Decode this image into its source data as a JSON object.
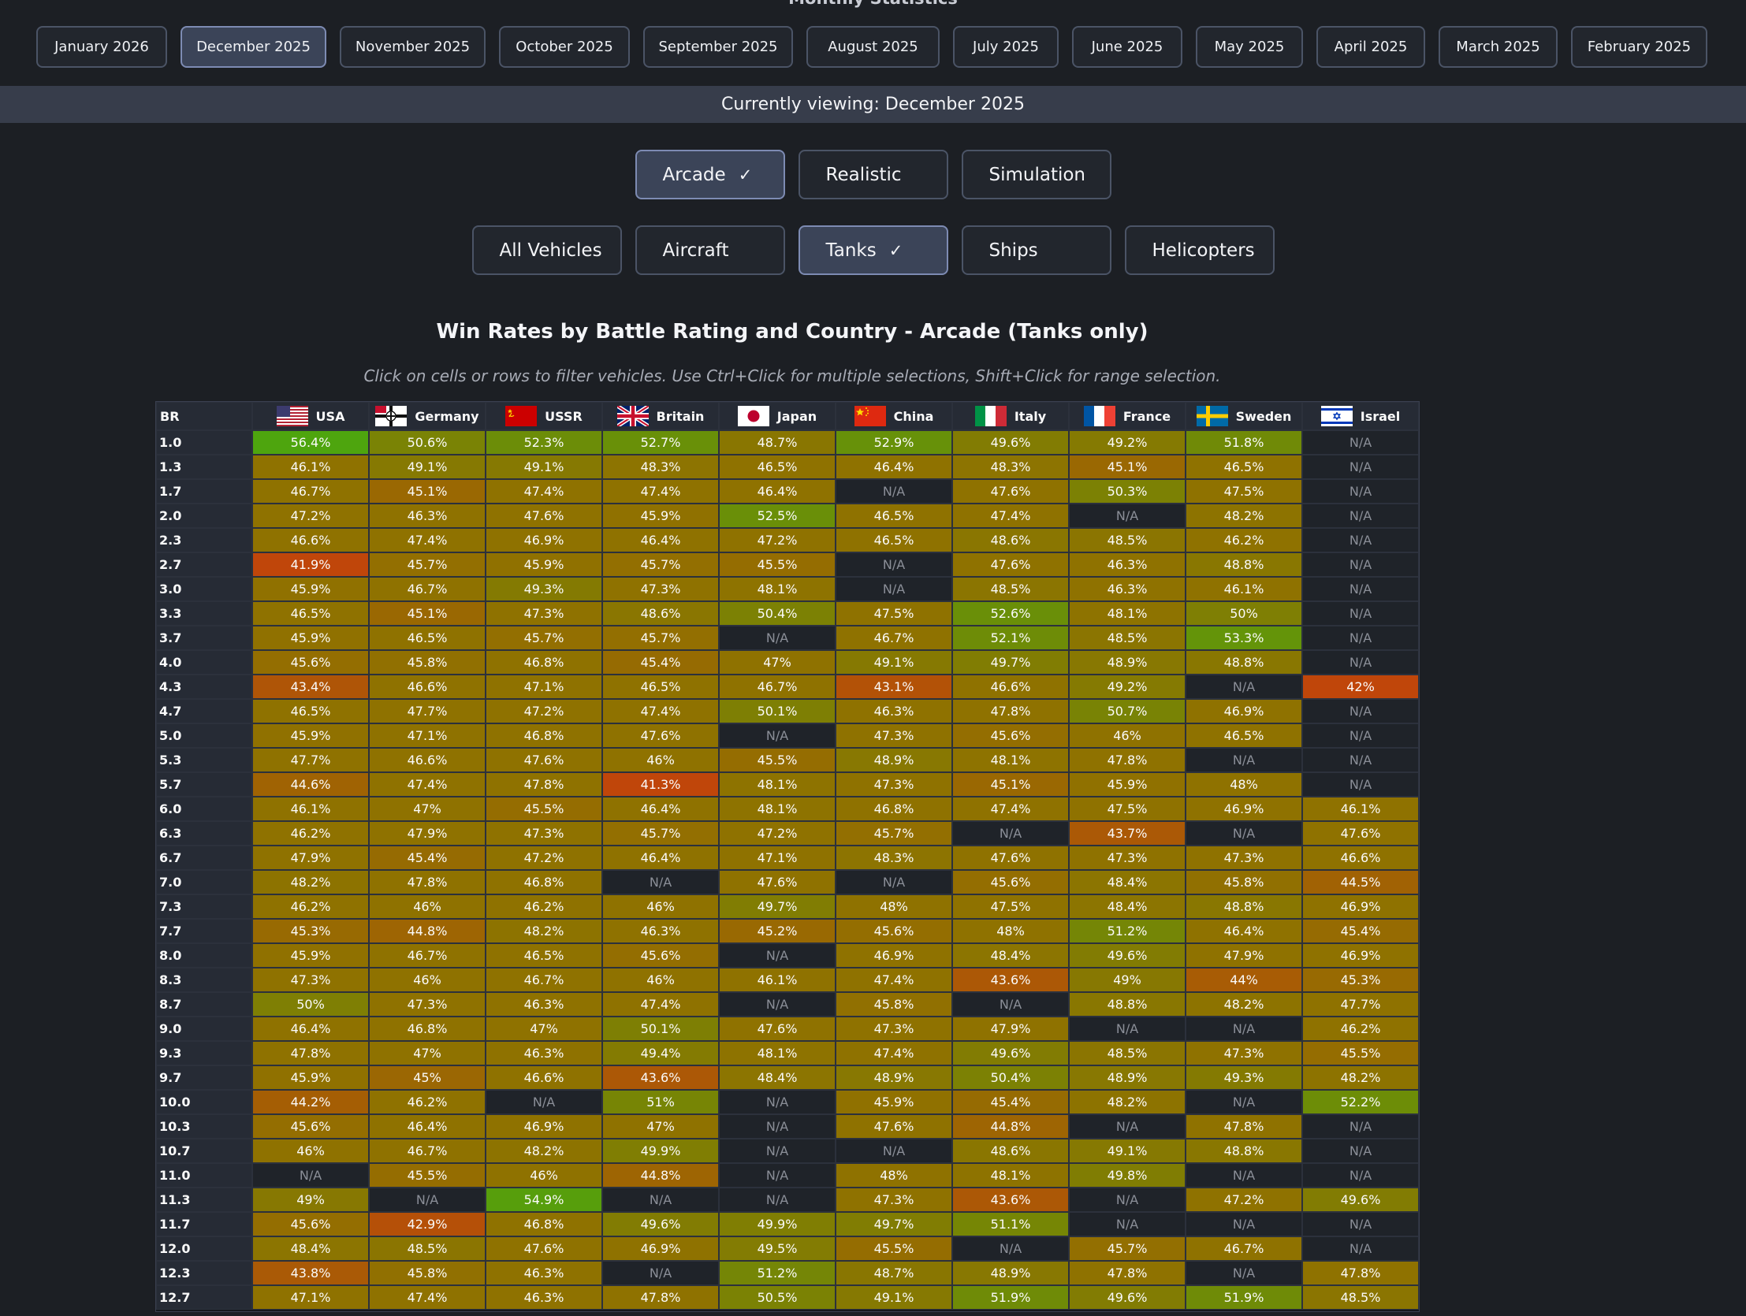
{
  "page_title": "Monthly Statistics",
  "months": [
    {
      "label": "January 2026",
      "width": 166,
      "active": false
    },
    {
      "label": "December 2025",
      "width": 185,
      "active": true
    },
    {
      "label": "November 2025",
      "width": 185,
      "active": false
    },
    {
      "label": "October 2025",
      "width": 166,
      "active": false
    },
    {
      "label": "September 2025",
      "width": 190,
      "active": false
    },
    {
      "label": "August 2025",
      "width": 169,
      "active": false
    },
    {
      "label": "July 2025",
      "width": 134,
      "active": false
    },
    {
      "label": "June 2025",
      "width": 140,
      "active": false
    },
    {
      "label": "May 2025",
      "width": 136,
      "active": false
    },
    {
      "label": "April 2025",
      "width": 138,
      "active": false
    },
    {
      "label": "March 2025",
      "width": 151,
      "active": false
    },
    {
      "label": "February 2025",
      "width": 173,
      "active": false
    }
  ],
  "viewing_text": "Currently viewing: December 2025",
  "modes": [
    {
      "label": "Arcade",
      "active": true
    },
    {
      "label": "Realistic",
      "active": false
    },
    {
      "label": "Simulation",
      "active": false
    }
  ],
  "vehicle_types": [
    {
      "label": "All Vehicles",
      "active": false
    },
    {
      "label": "Aircraft",
      "active": false
    },
    {
      "label": "Tanks",
      "active": true
    },
    {
      "label": "Ships",
      "active": false
    },
    {
      "label": "Helicopters",
      "active": false
    }
  ],
  "check_glyph": "✓",
  "chart_title": "Win Rates by Battle Rating and Country - Arcade (Tanks only)",
  "chart_hint": "Click on cells or rows to filter vehicles. Use Ctrl+Click for multiple selections, Shift+Click for range selection.",
  "br_header": "BR",
  "na_text": "N/A",
  "countries": [
    {
      "name": "USA",
      "flag": "usa-flag-icon"
    },
    {
      "name": "Germany",
      "flag": "germany-flag-icon"
    },
    {
      "name": "USSR",
      "flag": "ussr-flag-icon"
    },
    {
      "name": "Britain",
      "flag": "britain-flag-icon"
    },
    {
      "name": "Japan",
      "flag": "japan-flag-icon"
    },
    {
      "name": "China",
      "flag": "china-flag-icon"
    },
    {
      "name": "Italy",
      "flag": "italy-flag-icon"
    },
    {
      "name": "France",
      "flag": "france-flag-icon"
    },
    {
      "name": "Sweden",
      "flag": "sweden-flag-icon"
    },
    {
      "name": "Israel",
      "flag": "israel-flag-icon"
    }
  ],
  "colors": {
    "low": "#c0460a",
    "mid": "#8f7200",
    "high": "#4ea50e",
    "na": "#1f2329"
  },
  "chart_data": {
    "type": "heatmap",
    "title": "Win Rates by Battle Rating and Country - Arcade (Tanks only)",
    "x_categories": [
      "USA",
      "Germany",
      "USSR",
      "Britain",
      "Japan",
      "China",
      "Italy",
      "France",
      "Sweden",
      "Israel"
    ],
    "y_label": "BR",
    "unit": "%",
    "rows": [
      {
        "br": "1.0",
        "values": [
          "56.4%",
          "50.6%",
          "52.3%",
          "52.7%",
          "48.7%",
          "52.9%",
          "49.6%",
          "49.2%",
          "51.8%",
          "N/A"
        ]
      },
      {
        "br": "1.3",
        "values": [
          "46.1%",
          "49.1%",
          "49.1%",
          "48.3%",
          "46.5%",
          "46.4%",
          "48.3%",
          "45.1%",
          "46.5%",
          "N/A"
        ]
      },
      {
        "br": "1.7",
        "values": [
          "46.7%",
          "45.1%",
          "47.4%",
          "47.4%",
          "46.4%",
          "N/A",
          "47.6%",
          "50.3%",
          "47.5%",
          "N/A"
        ]
      },
      {
        "br": "2.0",
        "values": [
          "47.2%",
          "46.3%",
          "47.6%",
          "45.9%",
          "52.5%",
          "46.5%",
          "47.4%",
          "N/A",
          "48.2%",
          "N/A"
        ]
      },
      {
        "br": "2.3",
        "values": [
          "46.6%",
          "47.4%",
          "46.9%",
          "46.4%",
          "47.2%",
          "46.5%",
          "48.6%",
          "48.5%",
          "46.2%",
          "N/A"
        ]
      },
      {
        "br": "2.7",
        "values": [
          "41.9%",
          "45.7%",
          "45.9%",
          "45.7%",
          "45.5%",
          "N/A",
          "47.6%",
          "46.3%",
          "48.8%",
          "N/A"
        ]
      },
      {
        "br": "3.0",
        "values": [
          "45.9%",
          "46.7%",
          "49.3%",
          "47.3%",
          "48.1%",
          "N/A",
          "48.5%",
          "46.3%",
          "46.1%",
          "N/A"
        ]
      },
      {
        "br": "3.3",
        "values": [
          "46.5%",
          "45.1%",
          "47.3%",
          "48.6%",
          "50.4%",
          "47.5%",
          "52.6%",
          "48.1%",
          "50%",
          "N/A"
        ]
      },
      {
        "br": "3.7",
        "values": [
          "45.9%",
          "46.5%",
          "45.7%",
          "45.7%",
          "N/A",
          "46.7%",
          "52.1%",
          "48.5%",
          "53.3%",
          "N/A"
        ]
      },
      {
        "br": "4.0",
        "values": [
          "45.6%",
          "45.8%",
          "46.8%",
          "45.4%",
          "47%",
          "49.1%",
          "49.7%",
          "48.9%",
          "48.8%",
          "N/A"
        ]
      },
      {
        "br": "4.3",
        "values": [
          "43.4%",
          "46.6%",
          "47.1%",
          "46.5%",
          "46.7%",
          "43.1%",
          "46.6%",
          "49.2%",
          "N/A",
          "42%"
        ]
      },
      {
        "br": "4.7",
        "values": [
          "46.5%",
          "47.7%",
          "47.2%",
          "47.4%",
          "50.1%",
          "46.3%",
          "47.8%",
          "50.7%",
          "46.9%",
          "N/A"
        ]
      },
      {
        "br": "5.0",
        "values": [
          "45.9%",
          "47.1%",
          "46.8%",
          "47.6%",
          "N/A",
          "47.3%",
          "45.6%",
          "46%",
          "46.5%",
          "N/A"
        ]
      },
      {
        "br": "5.3",
        "values": [
          "47.7%",
          "46.6%",
          "47.6%",
          "46%",
          "45.5%",
          "48.9%",
          "48.1%",
          "47.8%",
          "N/A",
          "N/A"
        ]
      },
      {
        "br": "5.7",
        "values": [
          "44.6%",
          "47.4%",
          "47.8%",
          "41.3%",
          "48.1%",
          "47.3%",
          "45.1%",
          "45.9%",
          "48%",
          "N/A"
        ]
      },
      {
        "br": "6.0",
        "values": [
          "46.1%",
          "47%",
          "45.5%",
          "46.4%",
          "48.1%",
          "46.8%",
          "47.4%",
          "47.5%",
          "46.9%",
          "46.1%"
        ]
      },
      {
        "br": "6.3",
        "values": [
          "46.2%",
          "47.9%",
          "47.3%",
          "45.7%",
          "47.2%",
          "45.7%",
          "N/A",
          "43.7%",
          "N/A",
          "47.6%"
        ]
      },
      {
        "br": "6.7",
        "values": [
          "47.9%",
          "45.4%",
          "47.2%",
          "46.4%",
          "47.1%",
          "48.3%",
          "47.6%",
          "47.3%",
          "47.3%",
          "46.6%"
        ]
      },
      {
        "br": "7.0",
        "values": [
          "48.2%",
          "47.8%",
          "46.8%",
          "N/A",
          "47.6%",
          "N/A",
          "45.6%",
          "48.4%",
          "45.8%",
          "44.5%"
        ]
      },
      {
        "br": "7.3",
        "values": [
          "46.2%",
          "46%",
          "46.2%",
          "46%",
          "49.7%",
          "48%",
          "47.5%",
          "48.4%",
          "48.8%",
          "46.9%"
        ]
      },
      {
        "br": "7.7",
        "values": [
          "45.3%",
          "44.8%",
          "48.2%",
          "46.3%",
          "45.2%",
          "45.6%",
          "48%",
          "51.2%",
          "46.4%",
          "45.4%"
        ]
      },
      {
        "br": "8.0",
        "values": [
          "45.9%",
          "46.7%",
          "46.5%",
          "45.6%",
          "N/A",
          "46.9%",
          "48.4%",
          "49.6%",
          "47.9%",
          "46.9%"
        ]
      },
      {
        "br": "8.3",
        "values": [
          "47.3%",
          "46%",
          "46.7%",
          "46%",
          "46.1%",
          "47.4%",
          "43.6%",
          "49%",
          "44%",
          "45.3%"
        ]
      },
      {
        "br": "8.7",
        "values": [
          "50%",
          "47.3%",
          "46.3%",
          "47.4%",
          "N/A",
          "45.8%",
          "N/A",
          "48.8%",
          "48.2%",
          "47.7%"
        ]
      },
      {
        "br": "9.0",
        "values": [
          "46.4%",
          "46.8%",
          "47%",
          "50.1%",
          "47.6%",
          "47.3%",
          "47.9%",
          "N/A",
          "N/A",
          "46.2%"
        ]
      },
      {
        "br": "9.3",
        "values": [
          "47.8%",
          "47%",
          "46.3%",
          "49.4%",
          "48.1%",
          "47.4%",
          "49.6%",
          "48.5%",
          "47.3%",
          "45.5%"
        ]
      },
      {
        "br": "9.7",
        "values": [
          "45.9%",
          "45%",
          "46.6%",
          "43.6%",
          "48.4%",
          "48.9%",
          "50.4%",
          "48.9%",
          "49.3%",
          "48.2%"
        ]
      },
      {
        "br": "10.0",
        "values": [
          "44.2%",
          "46.2%",
          "N/A",
          "51%",
          "N/A",
          "45.9%",
          "45.4%",
          "48.2%",
          "N/A",
          "52.2%"
        ]
      },
      {
        "br": "10.3",
        "values": [
          "45.6%",
          "46.4%",
          "46.9%",
          "47%",
          "N/A",
          "47.6%",
          "44.8%",
          "N/A",
          "47.8%",
          "N/A"
        ]
      },
      {
        "br": "10.7",
        "values": [
          "46%",
          "46.7%",
          "48.2%",
          "49.9%",
          "N/A",
          "N/A",
          "48.6%",
          "49.1%",
          "48.8%",
          "N/A"
        ]
      },
      {
        "br": "11.0",
        "values": [
          "N/A",
          "45.5%",
          "46%",
          "44.8%",
          "N/A",
          "48%",
          "48.1%",
          "49.8%",
          "N/A",
          "N/A"
        ]
      },
      {
        "br": "11.3",
        "values": [
          "49%",
          "N/A",
          "54.9%",
          "N/A",
          "N/A",
          "47.3%",
          "43.6%",
          "N/A",
          "47.2%",
          "49.6%"
        ]
      },
      {
        "br": "11.7",
        "values": [
          "45.6%",
          "42.9%",
          "46.8%",
          "49.6%",
          "49.9%",
          "49.7%",
          "51.1%",
          "N/A",
          "N/A",
          "N/A"
        ]
      },
      {
        "br": "12.0",
        "values": [
          "48.4%",
          "48.5%",
          "47.6%",
          "46.9%",
          "49.5%",
          "45.5%",
          "N/A",
          "45.7%",
          "46.7%",
          "N/A"
        ]
      },
      {
        "br": "12.3",
        "values": [
          "43.8%",
          "45.8%",
          "46.3%",
          "N/A",
          "51.2%",
          "48.7%",
          "48.9%",
          "47.8%",
          "N/A",
          "47.8%"
        ]
      },
      {
        "br": "12.7",
        "values": [
          "47.1%",
          "47.4%",
          "46.3%",
          "47.8%",
          "50.5%",
          "49.1%",
          "51.9%",
          "49.6%",
          "51.9%",
          "48.5%"
        ]
      }
    ]
  }
}
